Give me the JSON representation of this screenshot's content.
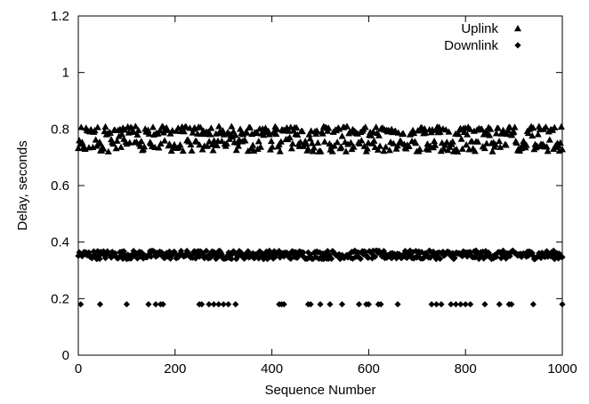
{
  "chart_data": {
    "type": "scatter",
    "title": "",
    "xlabel": "Sequence Number",
    "ylabel": "Delay, seconds",
    "xlim": [
      0,
      1000
    ],
    "ylim": [
      0,
      1.2
    ],
    "xticks": [
      0,
      200,
      400,
      600,
      800,
      1000
    ],
    "yticks": [
      0,
      0.2,
      0.4,
      0.6,
      0.8,
      1,
      1.2
    ],
    "xtick_labels": [
      "0",
      "200",
      "400",
      "600",
      "800",
      "1000"
    ],
    "ytick_labels": [
      "0",
      "0.2",
      "0.4",
      "0.6",
      "0.8",
      "1",
      "1.2"
    ],
    "grid": false,
    "legend_position": "top-right",
    "color": "#000000",
    "series": [
      {
        "name": "Uplink",
        "marker": "triangle",
        "points_description_range": [
          0.72,
          0.81
        ],
        "x_range": [
          0,
          1000
        ],
        "point_count": 500
      },
      {
        "name": "Downlink",
        "marker": "diamond",
        "cluster_range": [
          0.34,
          0.37
        ],
        "cluster_point_count": 500,
        "low_outlier_y": 0.18,
        "low_outlier_x": [
          5,
          45,
          100,
          145,
          160,
          170,
          175,
          250,
          255,
          270,
          280,
          290,
          300,
          310,
          325,
          415,
          420,
          425,
          475,
          480,
          500,
          520,
          545,
          580,
          595,
          600,
          620,
          625,
          660,
          730,
          740,
          750,
          770,
          780,
          790,
          800,
          810,
          840,
          870,
          890,
          895,
          940,
          1000
        ]
      }
    ]
  }
}
